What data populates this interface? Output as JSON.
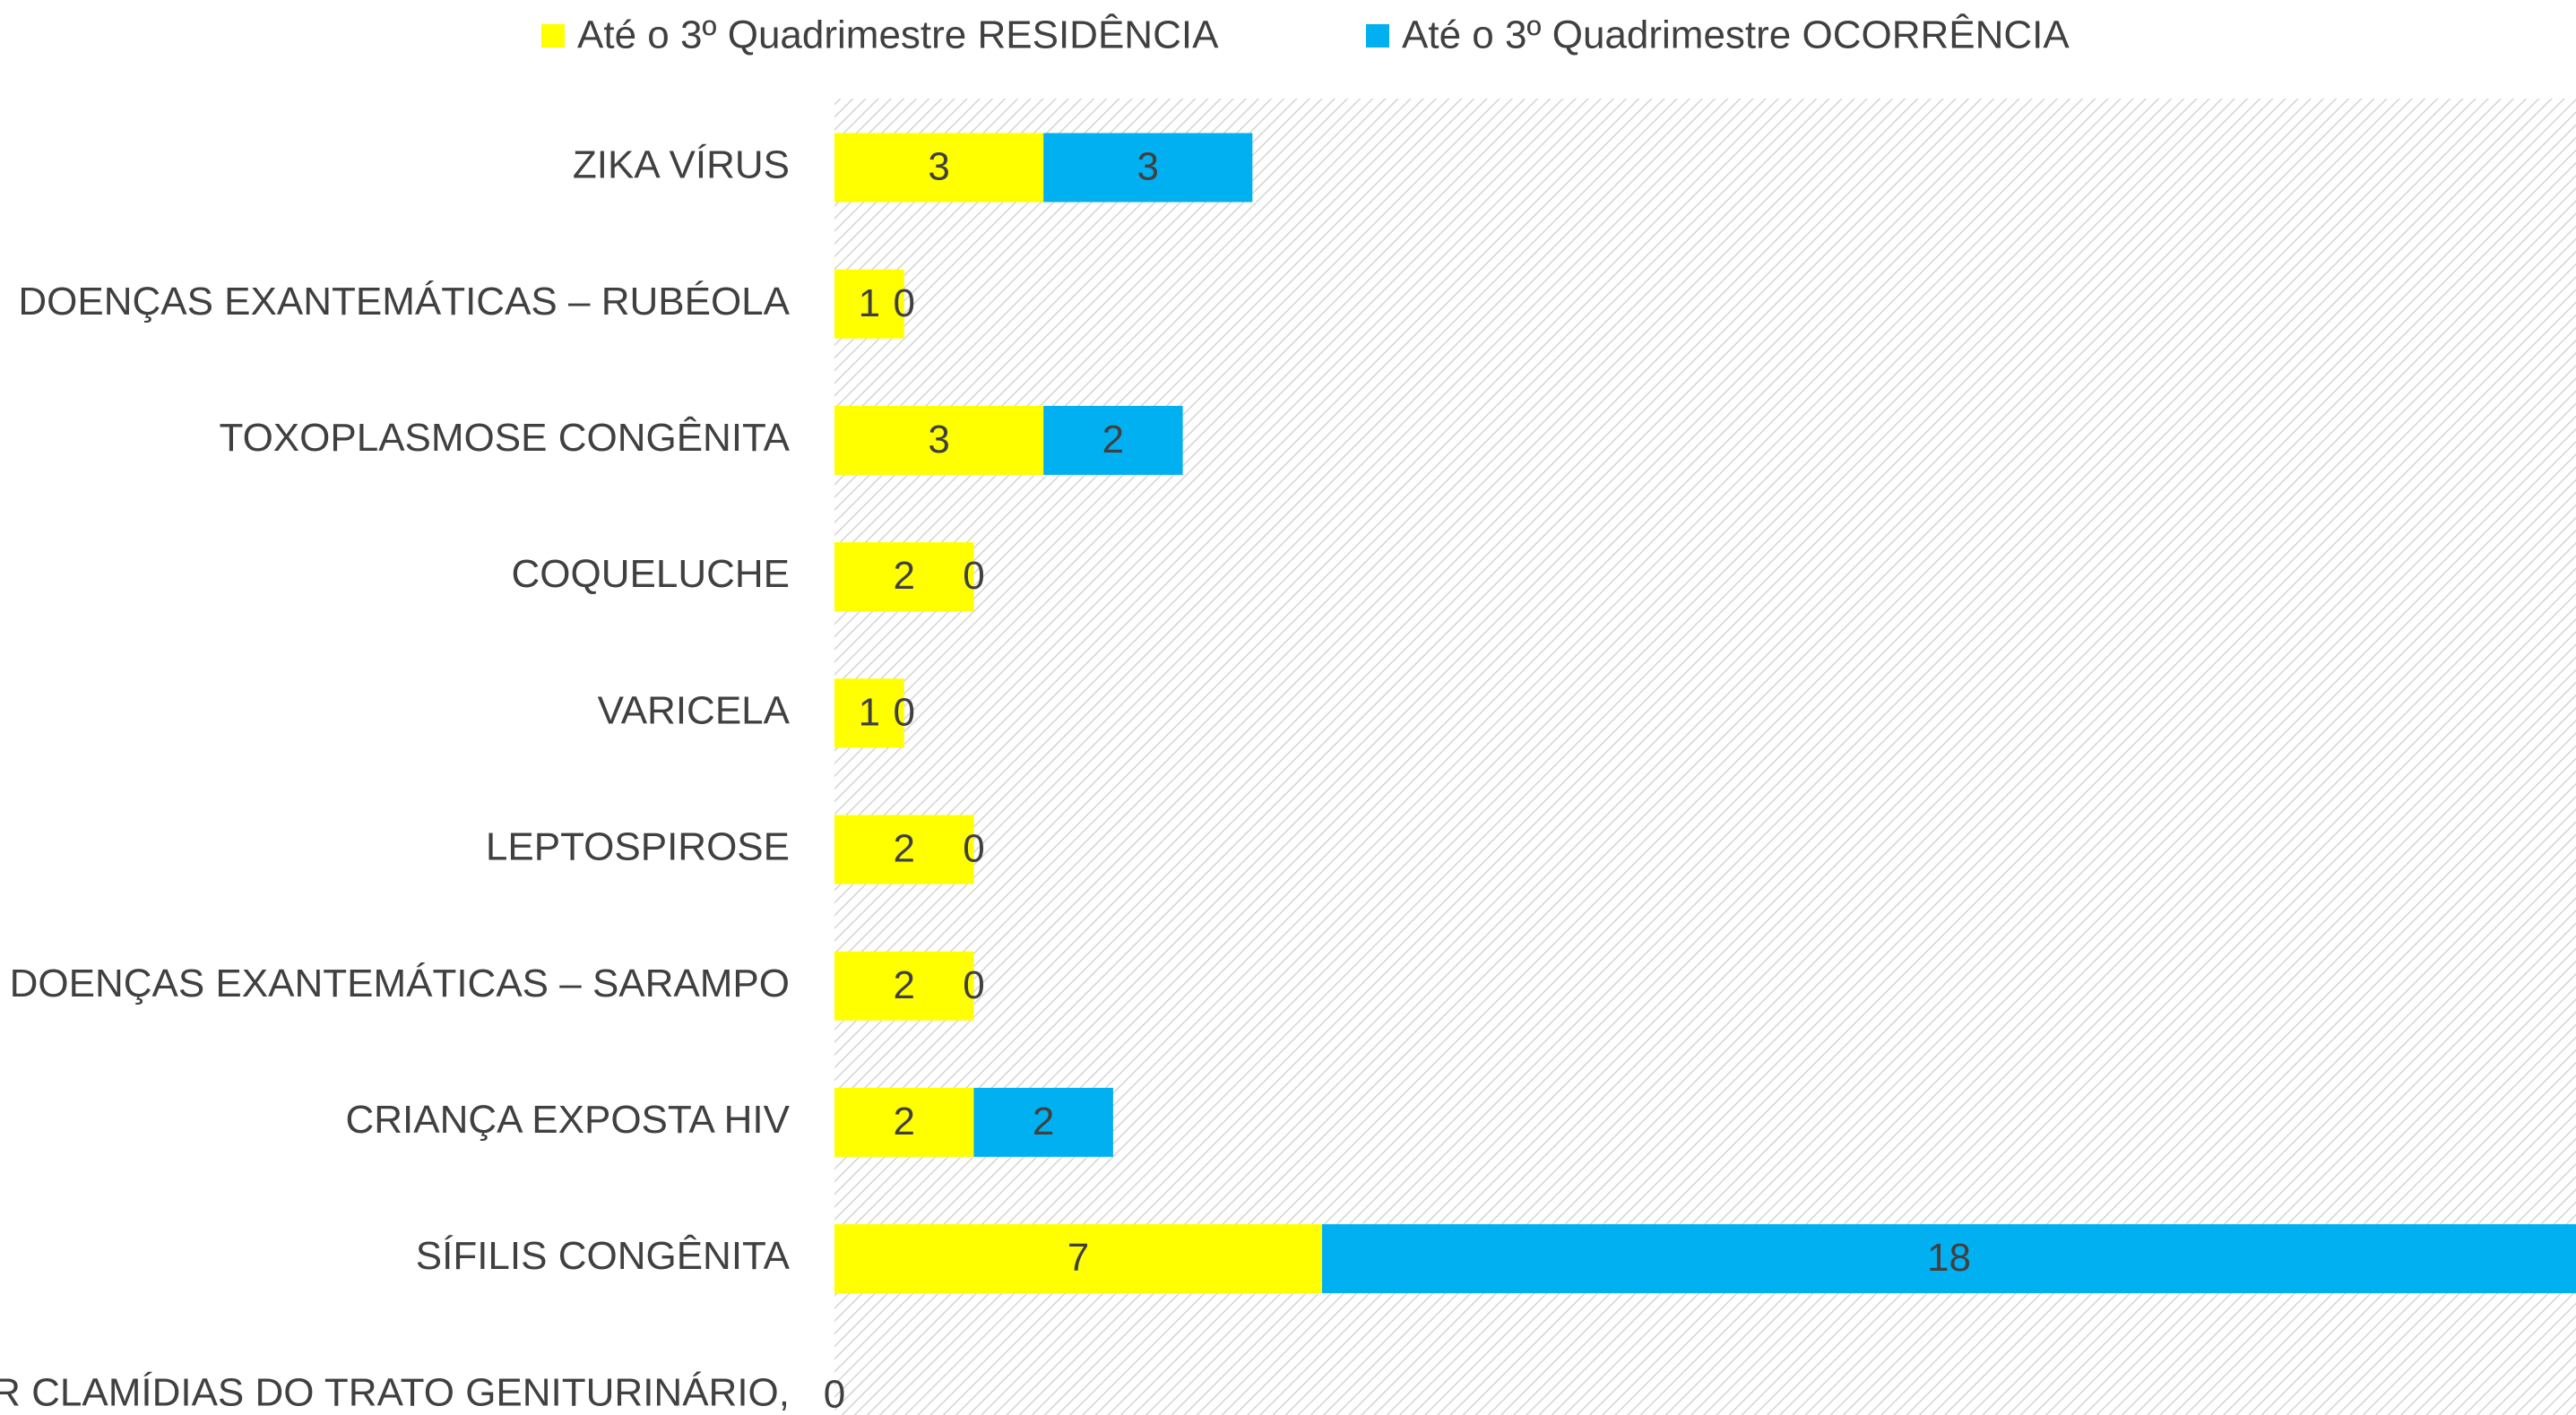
{
  "chart_data": {
    "type": "bar",
    "orientation": "horizontal",
    "stacked": true,
    "categories": [
      "ZIKA VÍRUS",
      "DOENÇAS EXANTEMÁTICAS – RUBÉOLA",
      "TOXOPLASMOSE CONGÊNITA",
      "COQUELUCHE",
      "VARICELA",
      "LEPTOSPIROSE",
      "DOENÇAS EXANTEMÁTICAS – SARAMPO",
      "CRIANÇA EXPOSTA HIV",
      "SÍFILIS CONGÊNITA",
      "R CLAMÍDIAS DO TRATO GENITURINÁRIO,"
    ],
    "series": [
      {
        "name": "Até o 3º Quadrimestre RESIDÊNCIA",
        "color": "#ffff00",
        "values": [
          3,
          1,
          3,
          2,
          1,
          2,
          2,
          2,
          7,
          0
        ]
      },
      {
        "name": "Até o 3º Quadrimestre  OCORRÊNCIA",
        "color": "#00b0f0",
        "values": [
          3,
          0,
          2,
          0,
          0,
          0,
          0,
          2,
          18,
          null
        ]
      }
    ],
    "xlim": [
      0,
      25
    ],
    "legend": "top"
  }
}
